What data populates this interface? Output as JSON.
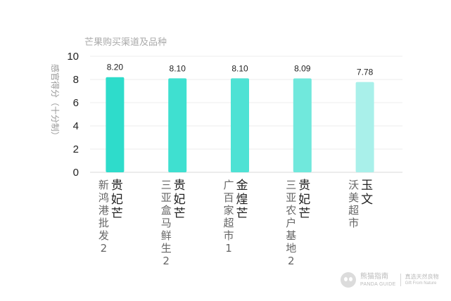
{
  "chart_data": {
    "type": "bar",
    "subtitle": "芒果购买渠道及品种",
    "ylabel": "感官得分（十分制）",
    "ylim": [
      0,
      10
    ],
    "yticks": [
      "0",
      "2",
      "4",
      "6",
      "8",
      "10"
    ],
    "grid": true,
    "values": [
      8.2,
      8.1,
      8.1,
      8.09,
      7.78
    ],
    "value_labels": [
      "8.20",
      "8.10",
      "8.10",
      "8.09",
      "7.78"
    ],
    "categories": [
      {
        "variety": "贵妃芒",
        "channel": "新鸿港批发2"
      },
      {
        "variety": "贵妃芒",
        "channel": "三亚盒马鲜生2"
      },
      {
        "variety": "金煌芒",
        "channel": "广百家超市1"
      },
      {
        "variety": "贵妃芒",
        "channel": "三亚农户基地2"
      },
      {
        "variety": "玉文",
        "channel": "沃美超市"
      }
    ],
    "colors": [
      "#2edccb",
      "#3fe0d0",
      "#4ee2d4",
      "#70e8dc",
      "#a9f0ea"
    ]
  },
  "brand": {
    "name": "熊猫指南",
    "name_en": "PANDA GUIDE",
    "tagline": "真选天然良物",
    "tagline_en": "Gift From Nature"
  }
}
